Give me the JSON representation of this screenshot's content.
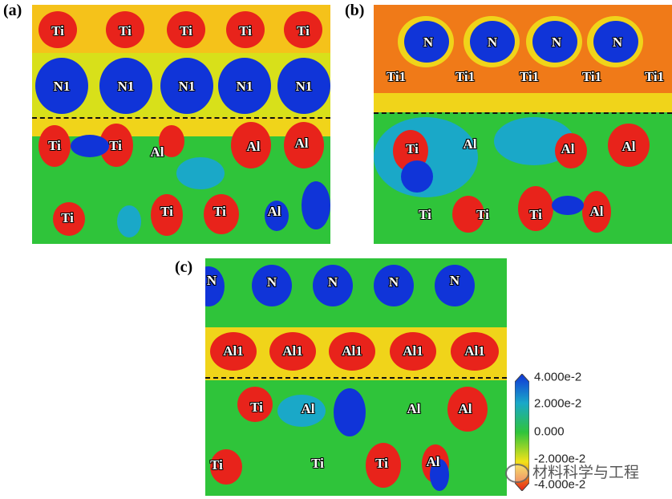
{
  "panels": [
    {
      "label": "(a)",
      "atoms_top": [
        "Ti",
        "Ti",
        "Ti",
        "Ti",
        "Ti"
      ],
      "atoms_mid": [
        "N1",
        "N1",
        "N1",
        "N1",
        "N1"
      ],
      "atoms_low": [
        "Ti",
        "Ti",
        "Al",
        "Al",
        "Al"
      ],
      "atoms_bottom": [
        "Ti",
        "Ti",
        "Ti",
        "Al"
      ]
    },
    {
      "label": "(b)",
      "atoms_top": [
        "N",
        "N",
        "N",
        "N"
      ],
      "atoms_mid": [
        "Ti1",
        "Ti1",
        "Ti1",
        "Ti1",
        "Ti1"
      ],
      "atoms_low": [
        "Ti",
        "Al",
        "Al",
        "Al"
      ],
      "atoms_bottom": [
        "Ti",
        "Ti",
        "Ti",
        "Al"
      ]
    },
    {
      "label": "(c)",
      "atoms_top": [
        "N",
        "N",
        "N",
        "N",
        "N"
      ],
      "atoms_mid": [
        "Al1",
        "Al1",
        "Al1",
        "Al1",
        "Al1"
      ],
      "atoms_low": [
        "Ti",
        "Al",
        "Al",
        "Al"
      ],
      "atoms_bottom": [
        "Ti",
        "Ti",
        "Ti",
        "Al"
      ]
    }
  ],
  "legend": {
    "ticks": [
      "4.000e-2",
      "2.000e-2",
      "0.000",
      "-2.000e-2",
      "-4.000e-2"
    ],
    "colors": [
      "#1034d8",
      "#1aa8c8",
      "#2fc43a",
      "#f2e21a",
      "#e8231b"
    ]
  },
  "watermark": "材料科学与工程"
}
